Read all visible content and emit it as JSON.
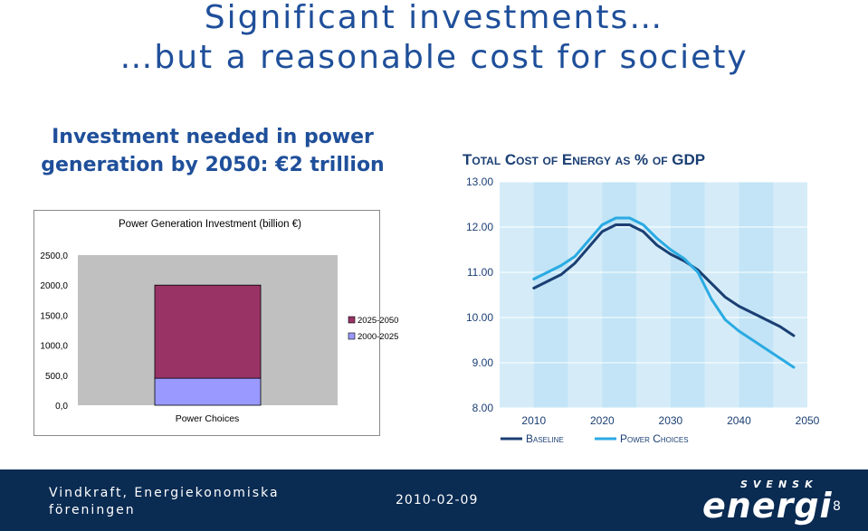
{
  "slide": {
    "title_line1": "Significant investments…",
    "title_line2": "…but a reasonable cost for society",
    "subheading": "Investment needed in power generation by 2050: €2 trillion"
  },
  "chart_data": [
    {
      "type": "bar",
      "stacked": true,
      "title": "Power Generation Investment (billion €)",
      "categories": [
        "Power Choices"
      ],
      "series": [
        {
          "name": "2000-2025",
          "values": [
            450
          ],
          "color": "#9999ff"
        },
        {
          "name": "2025-2050",
          "values": [
            1550
          ],
          "color": "#993366"
        }
      ],
      "y_ticks": [
        "0,0",
        "500,0",
        "1000,0",
        "1500,0",
        "2000,0",
        "2500,0"
      ],
      "ylim": [
        0,
        2500
      ],
      "legend_placement": "right",
      "grid": false,
      "plot_background": "#c0c0c0"
    },
    {
      "type": "line",
      "title": "Total Cost of Energy as % of GDP",
      "x_ticks": [
        "2010",
        "2020",
        "2030",
        "2040",
        "2050"
      ],
      "y_ticks": [
        "8.00",
        "9.00",
        "10.00",
        "11.00",
        "12.00",
        "13.00"
      ],
      "xlim": [
        2005,
        2050
      ],
      "ylim": [
        8,
        13
      ],
      "legend_placement": "bottom",
      "series": [
        {
          "name": "Baseline",
          "color": "#1b3f73",
          "x": [
            2010,
            2012,
            2014,
            2016,
            2018,
            2020,
            2022,
            2024,
            2026,
            2028,
            2030,
            2032,
            2034,
            2036,
            2038,
            2040,
            2042,
            2044,
            2046,
            2048
          ],
          "y": [
            10.65,
            10.8,
            10.95,
            11.2,
            11.55,
            11.9,
            12.05,
            12.05,
            11.9,
            11.6,
            11.4,
            11.25,
            11.05,
            10.75,
            10.45,
            10.25,
            10.1,
            9.95,
            9.8,
            9.6
          ]
        },
        {
          "name": "Power Choices",
          "color": "#2aaae2",
          "x": [
            2010,
            2012,
            2014,
            2016,
            2018,
            2020,
            2022,
            2024,
            2026,
            2028,
            2030,
            2032,
            2034,
            2036,
            2038,
            2040,
            2042,
            2044,
            2046,
            2048
          ],
          "y": [
            10.85,
            11.0,
            11.15,
            11.35,
            11.7,
            12.05,
            12.2,
            12.2,
            12.05,
            11.75,
            11.5,
            11.3,
            11.0,
            10.4,
            9.95,
            9.7,
            9.5,
            9.3,
            9.1,
            8.9
          ]
        }
      ]
    }
  ],
  "footer": {
    "organization": "Vindkraft, Energiekonomiska föreningen",
    "date": "2010-02-09",
    "logo_small": "SVENSK",
    "logo_big": "energi",
    "page_number": "8"
  }
}
